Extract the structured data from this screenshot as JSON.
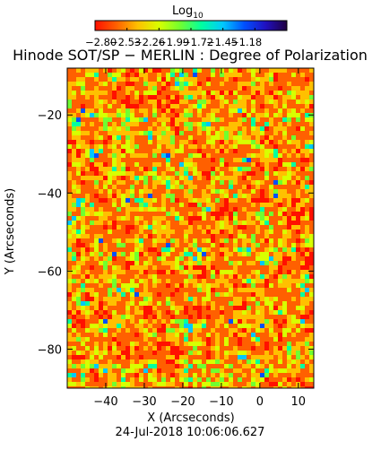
{
  "chart_data": {
    "type": "heatmap",
    "title": "Hinode SOT/SP − MERLIN : Degree of Polarization",
    "colorbar": {
      "label_main": "Log",
      "label_sub": "10",
      "ticks": [
        "−2.80",
        "−2.53",
        "−2.26",
        "−1.99",
        "−1.72",
        "−1.45",
        "−1.18"
      ],
      "range": [
        -2.8,
        -1.18
      ],
      "colors": [
        "#ff1000",
        "#ff6000",
        "#ffc000",
        "#d8ff00",
        "#70ff30",
        "#00ffa0",
        "#00c8ff",
        "#0050ff",
        "#2010c0",
        "#200040"
      ]
    },
    "xlabel": "X (Arcseconds)",
    "ylabel": "Y (Arcseconds)",
    "xlim": [
      -50,
      14
    ],
    "ylim": [
      -90,
      -8
    ],
    "xticks": [
      -40,
      -30,
      -20,
      -10,
      0,
      10
    ],
    "yticks": [
      -20,
      -40,
      -60,
      -80
    ],
    "xtick_labels": [
      "−40",
      "−30",
      "−20",
      "−10",
      "0",
      "10"
    ],
    "ytick_labels": [
      "−20",
      "−40",
      "−60",
      "−80"
    ],
    "date": "24-Jul-2018 10:06:06.627",
    "grid": false
  }
}
